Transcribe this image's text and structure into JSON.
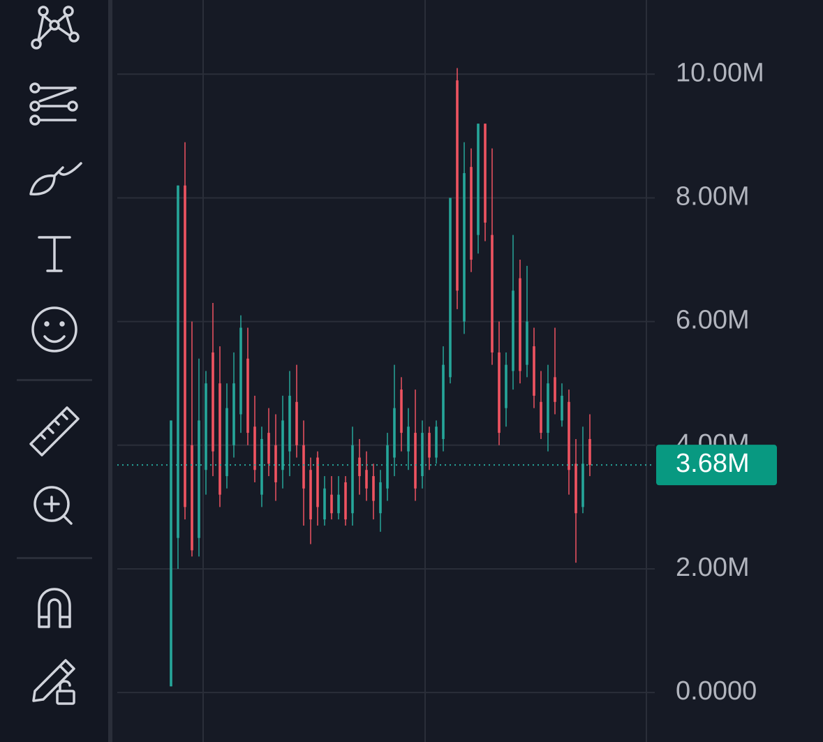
{
  "chart_data": {
    "type": "candlestick",
    "ylim": [
      -800000,
      11200000
    ],
    "yticks": [
      {
        "value": 0,
        "label": "0.0000"
      },
      {
        "value": 2000000,
        "label": "2.00M"
      },
      {
        "value": 4000000,
        "label": "4.00M"
      },
      {
        "value": 6000000,
        "label": "6.00M"
      },
      {
        "value": 8000000,
        "label": "8.00M"
      },
      {
        "value": 10000000,
        "label": "10.00M"
      }
    ],
    "grid": true,
    "up_color": "#26a69a",
    "down_color": "#ef5361",
    "last_price": {
      "value": 3680000,
      "label": "3.68M"
    },
    "open": [
      100000,
      2500000,
      8200000,
      4000000,
      2500000,
      3600000,
      5500000,
      5000000,
      3500000,
      4000000,
      4500000,
      5400000,
      4300000,
      3200000,
      4200000,
      4000000,
      3600000,
      3900000,
      4700000,
      4000000,
      3600000,
      3800000,
      2800000,
      3200000,
      2900000,
      3400000,
      2900000,
      3800000,
      3600000,
      3500000,
      2900000,
      3300000,
      3800000,
      4900000,
      3900000,
      4200000,
      3500000,
      4200000,
      3800000,
      4100000,
      5100000,
      9900000,
      6000000,
      8500000,
      7400000,
      9200000,
      7400000,
      5500000,
      4600000,
      5200000,
      6700000,
      5300000,
      5600000,
      4700000,
      4200000,
      5100000,
      4400000,
      4700000,
      3700000,
      3000000,
      4100000
    ],
    "high": [
      4400000,
      8200000,
      8900000,
      6000000,
      5400000,
      5200000,
      6300000,
      5600000,
      5000000,
      5500000,
      6100000,
      5900000,
      4800000,
      4300000,
      4600000,
      4500000,
      4800000,
      5200000,
      5300000,
      4400000,
      3800000,
      3900000,
      3500000,
      3500000,
      3500000,
      3500000,
      4300000,
      4100000,
      3900000,
      3700000,
      3600000,
      4200000,
      5300000,
      5100000,
      4600000,
      4900000,
      4400000,
      4300000,
      4400000,
      5600000,
      8000000,
      10100000,
      8900000,
      8800000,
      9200000,
      9200000,
      8800000,
      6000000,
      5500000,
      7400000,
      7000000,
      6900000,
      5900000,
      5200000,
      5300000,
      5900000,
      5000000,
      4900000,
      4100000,
      4300000,
      4500000
    ],
    "low": [
      100000,
      2000000,
      2800000,
      2200000,
      2200000,
      3200000,
      3500000,
      3000000,
      3300000,
      3800000,
      4200000,
      4000000,
      3400000,
      3000000,
      3500000,
      3100000,
      3300000,
      3500000,
      3800000,
      2700000,
      2400000,
      2700000,
      2700000,
      2800000,
      2800000,
      2700000,
      2700000,
      3200000,
      3100000,
      2800000,
      2600000,
      3100000,
      3500000,
      3900000,
      3600000,
      3100000,
      3300000,
      3600000,
      3700000,
      3900000,
      5000000,
      6200000,
      5800000,
      6800000,
      7100000,
      7300000,
      5300000,
      4000000,
      4300000,
      4900000,
      5000000,
      5100000,
      4600000,
      4100000,
      3900000,
      4500000,
      4300000,
      3200000,
      2100000,
      2900000,
      3500000
    ],
    "close": [
      4400000,
      8200000,
      3000000,
      2300000,
      4400000,
      5000000,
      3900000,
      3200000,
      4600000,
      5000000,
      5900000,
      4200000,
      3600000,
      4100000,
      3700000,
      3400000,
      4400000,
      4800000,
      4000000,
      3300000,
      2800000,
      3000000,
      3300000,
      2900000,
      3200000,
      2800000,
      4000000,
      3500000,
      3300000,
      3100000,
      3400000,
      4000000,
      4600000,
      4200000,
      4300000,
      3300000,
      4200000,
      3800000,
      4300000,
      5300000,
      8000000,
      6500000,
      8400000,
      7000000,
      9200000,
      7600000,
      5500000,
      4200000,
      5300000,
      6500000,
      5200000,
      6000000,
      4800000,
      4200000,
      5000000,
      4700000,
      4800000,
      3600000,
      2900000,
      3700000,
      3680000
    ]
  }
}
